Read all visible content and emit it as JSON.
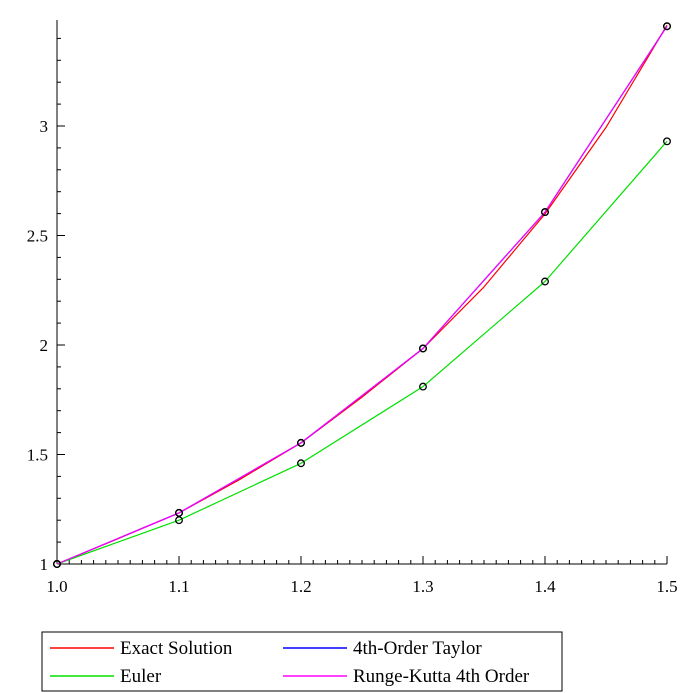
{
  "chart_data": {
    "type": "line",
    "title": "",
    "xlabel": "",
    "ylabel": "",
    "xlim": [
      1.0,
      1.5
    ],
    "ylim": [
      1.0,
      3.45
    ],
    "x_ticks": [
      1.0,
      1.1,
      1.2,
      1.3,
      1.4,
      1.5
    ],
    "x_tick_labels": [
      "1.0",
      "1.1",
      "1.2",
      "1.3",
      "1.4",
      "1.5"
    ],
    "y_ticks": [
      1,
      1.5,
      2,
      2.5,
      3
    ],
    "y_tick_labels": [
      "1",
      "1.5",
      "2",
      "2.5",
      "3"
    ],
    "grid": false,
    "legend_position": "bottom",
    "series": [
      {
        "name": "Exact Solution",
        "color": "#ff0000",
        "kind": "line",
        "x": [
          1.0,
          1.05,
          1.1,
          1.15,
          1.2,
          1.25,
          1.3,
          1.35,
          1.4,
          1.45,
          1.5
        ],
        "y": [
          1.0,
          1.1155,
          1.2334,
          1.3867,
          1.5531,
          1.7622,
          1.9841,
          2.2655,
          2.5986,
          2.9937,
          3.4604
        ]
      },
      {
        "name": "4th-Order Taylor",
        "color": "#0000ff",
        "kind": "line-with-markers",
        "x": [
          1.0,
          1.1,
          1.2,
          1.3,
          1.4,
          1.5
        ],
        "y": [
          1.0,
          1.2334,
          1.5531,
          1.9842,
          2.6069,
          3.4555
        ]
      },
      {
        "name": "Euler",
        "color": "#00e000",
        "kind": "line-with-markers",
        "x": [
          1.0,
          1.1,
          1.2,
          1.3,
          1.4,
          1.5
        ],
        "y": [
          1.0,
          1.2,
          1.46,
          1.81,
          2.29,
          2.93
        ]
      },
      {
        "name": "Runge-Kutta 4th Order",
        "color": "#ff00ff",
        "kind": "line-with-markers",
        "x": [
          1.0,
          1.1,
          1.2,
          1.3,
          1.4,
          1.5
        ],
        "y": [
          1.0,
          1.2334,
          1.5531,
          1.9841,
          2.6068,
          3.4554
        ]
      }
    ]
  }
}
